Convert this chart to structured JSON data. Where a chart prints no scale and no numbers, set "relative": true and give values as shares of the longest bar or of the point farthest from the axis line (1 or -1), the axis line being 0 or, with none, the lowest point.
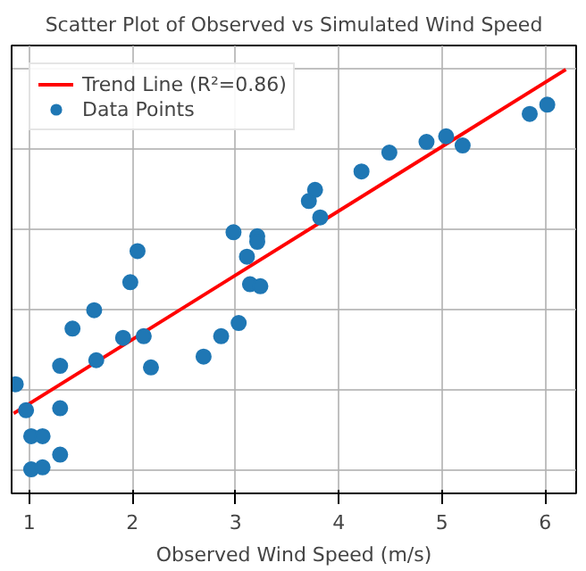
{
  "chart_data": {
    "type": "scatter",
    "title": "Scatter Plot of Observed vs Simulated Wind Speed",
    "xlabel": "Observed Wind Speed (m/s)",
    "relative": true,
    "xlim": [
      0.83,
      6.3
    ],
    "xticks": [
      1,
      2,
      3,
      4,
      5,
      6
    ],
    "grid": true,
    "legend": "top left",
    "tick_labels": "x",
    "series": [
      {
        "name": "Trend Line (R²=0.86)",
        "type": "line",
        "color": "#ff0000",
        "line_style": "solid",
        "x": [
          0.85,
          6.2
        ],
        "values": [
          0.14,
          1.0
        ]
      },
      {
        "name": "Data Points",
        "color": "#1f77b4",
        "marker": "circle",
        "x": [
          0.87,
          0.97,
          1.02,
          1.02,
          1.13,
          1.13,
          1.3,
          1.3,
          1.3,
          1.42,
          1.63,
          1.65,
          1.91,
          1.98,
          2.05,
          2.11,
          2.18,
          2.69,
          2.86,
          2.98,
          3.03,
          3.11,
          3.14,
          3.21,
          3.21,
          3.24,
          3.71,
          3.77,
          3.82,
          4.22,
          4.49,
          4.85,
          5.04,
          5.2,
          5.85,
          6.02
        ],
        "values": [
          0.213,
          0.148,
          0.083,
          0.0,
          0.083,
          0.005,
          0.153,
          0.037,
          0.259,
          0.352,
          0.398,
          0.273,
          0.329,
          0.468,
          0.546,
          0.333,
          0.255,
          0.282,
          0.333,
          0.593,
          0.366,
          0.532,
          0.463,
          0.583,
          0.569,
          0.458,
          0.671,
          0.699,
          0.63,
          0.745,
          0.792,
          0.819,
          0.833,
          0.81,
          0.889,
          0.912
        ]
      }
    ]
  }
}
